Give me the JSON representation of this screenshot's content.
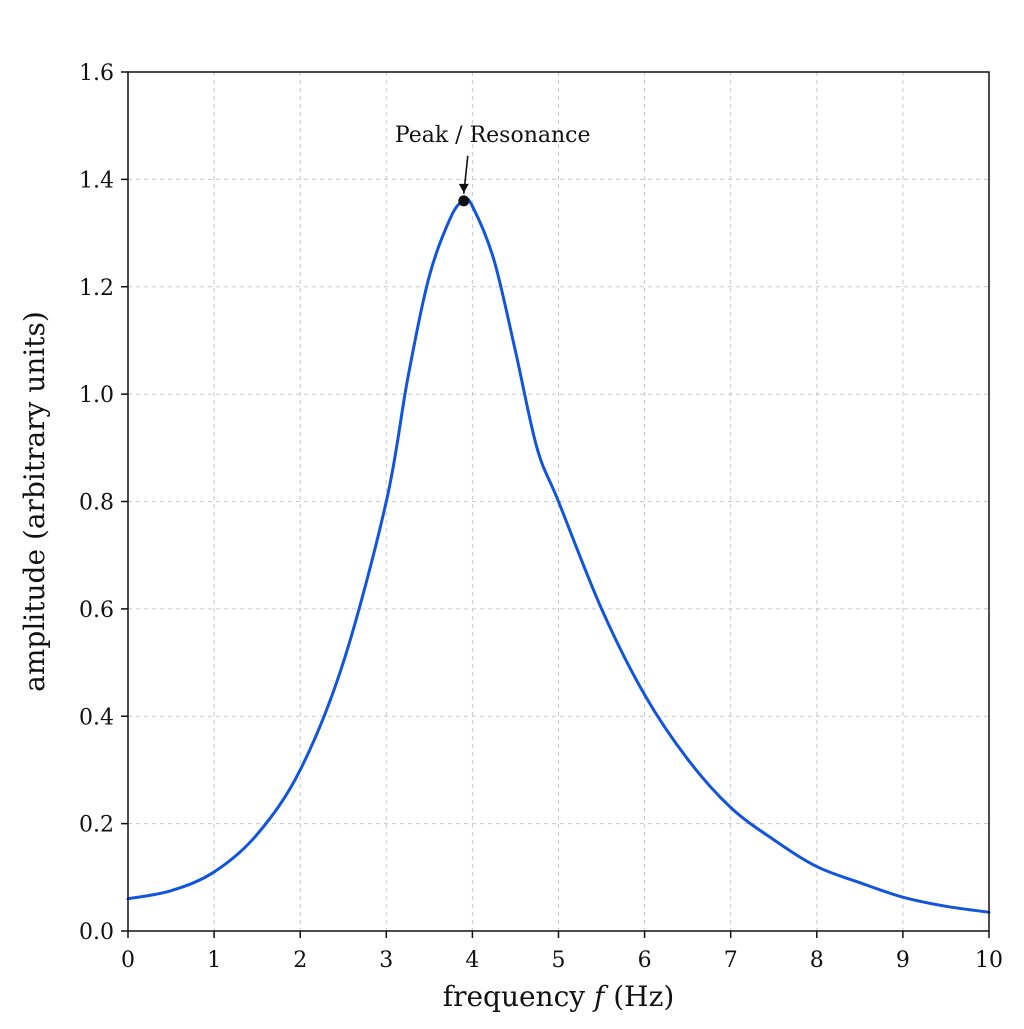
{
  "chart_data": {
    "type": "line",
    "title": "",
    "xlabel_prefix": "frequency ",
    "xlabel_var": "f",
    "xlabel_suffix": " (Hz)",
    "ylabel": "amplitude (arbitrary units)",
    "xlim": [
      0,
      10
    ],
    "ylim": [
      0,
      1.6
    ],
    "xticks": [
      0,
      1,
      2,
      3,
      4,
      5,
      6,
      7,
      8,
      9,
      10
    ],
    "xtick_labels": [
      "0",
      "1",
      "2",
      "3",
      "4",
      "5",
      "6",
      "7",
      "8",
      "9",
      "10"
    ],
    "yticks": [
      0,
      0.2,
      0.4,
      0.6,
      0.8,
      1.0,
      1.2,
      1.4,
      1.6
    ],
    "ytick_labels": [
      "0.0",
      "0.2",
      "0.4",
      "0.6",
      "0.8",
      "1.0",
      "1.2",
      "1.4",
      "1.6"
    ],
    "grid": true,
    "series": [
      {
        "color": "#1155dd",
        "x": [
          0,
          0.5,
          1,
          1.5,
          2,
          2.5,
          3,
          3.25,
          3.5,
          3.75,
          3.9,
          4.0,
          4.25,
          4.5,
          4.75,
          5,
          5.5,
          6,
          6.5,
          7,
          7.5,
          8,
          8.5,
          9,
          9.5,
          10
        ],
        "y": [
          0.06,
          0.075,
          0.11,
          0.18,
          0.3,
          0.5,
          0.8,
          1.03,
          1.22,
          1.33,
          1.36,
          1.35,
          1.25,
          1.08,
          0.9,
          0.8,
          0.6,
          0.44,
          0.32,
          0.23,
          0.17,
          0.12,
          0.09,
          0.063,
          0.046,
          0.035
        ]
      }
    ],
    "annotations": [
      {
        "text": "Peak / Resonance",
        "x": 3.9,
        "y": 1.36,
        "text_x": 3.1,
        "text_y": 1.47
      }
    ]
  }
}
